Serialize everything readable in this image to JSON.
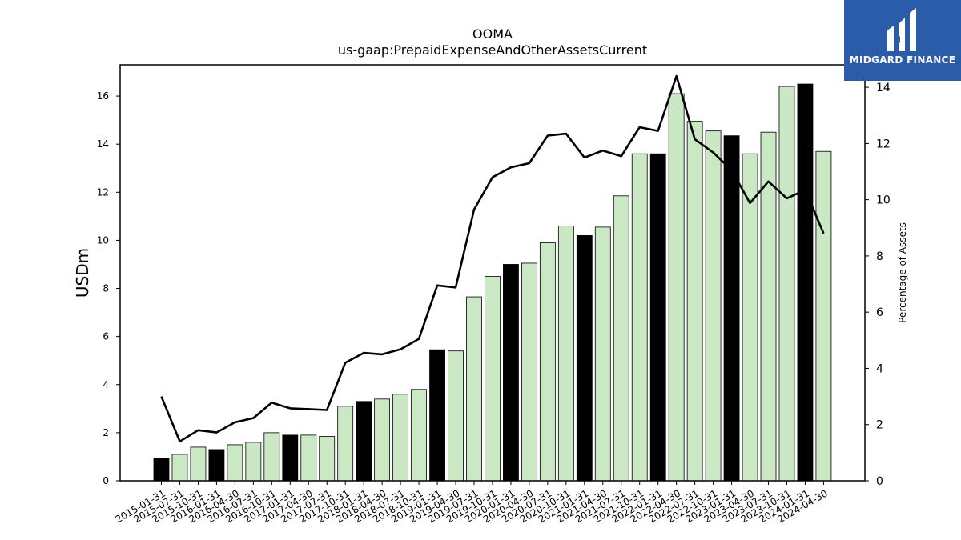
{
  "chart_data": {
    "type": "bar",
    "title": "OOMA",
    "subtitle": "us-gaap:PrepaidExpenseAndOtherAssetsCurrent",
    "ylabel": "USDm",
    "y2label": "Percentage of Assets",
    "ylim": [
      0,
      17.3
    ],
    "y2lim": [
      0,
      14.8
    ],
    "yticks": [
      0,
      2,
      4,
      6,
      8,
      10,
      12,
      14,
      16
    ],
    "y2ticks": [
      0,
      2,
      4,
      6,
      8,
      10,
      12,
      14
    ],
    "categories": [
      "2015-01-31",
      "2015-07-31",
      "2015-10-31",
      "2016-01-31",
      "2016-04-30",
      "2016-07-31",
      "2016-10-31",
      "2017-01-31",
      "2017-04-30",
      "2017-07-31",
      "2017-10-31",
      "2018-01-31",
      "2018-04-30",
      "2018-07-31",
      "2018-10-31",
      "2019-01-31",
      "2019-04-30",
      "2019-07-31",
      "2019-10-31",
      "2020-01-31",
      "2020-04-30",
      "2020-07-31",
      "2020-10-31",
      "2021-01-31",
      "2021-04-30",
      "2021-07-31",
      "2021-10-31",
      "2022-01-31",
      "2022-04-30",
      "2022-07-31",
      "2022-10-31",
      "2023-01-31",
      "2023-04-30",
      "2023-07-31",
      "2023-10-31",
      "2024-01-31",
      "2024-04-30"
    ],
    "series": [
      {
        "type": "bar",
        "values": [
          0.95,
          1.1,
          1.4,
          1.3,
          1.5,
          1.6,
          2.0,
          1.9,
          1.9,
          1.85,
          3.1,
          3.3,
          3.4,
          3.6,
          3.8,
          5.45,
          5.4,
          7.65,
          8.5,
          9.0,
          9.05,
          9.9,
          10.6,
          10.2,
          10.55,
          11.85,
          13.6,
          13.6,
          16.1,
          14.95,
          14.55,
          14.35,
          13.6,
          14.5,
          16.4,
          16.5,
          13.7
        ],
        "highlight": [
          true,
          false,
          false,
          true,
          false,
          false,
          false,
          true,
          false,
          false,
          false,
          true,
          false,
          false,
          false,
          true,
          false,
          false,
          false,
          true,
          false,
          false,
          false,
          true,
          false,
          false,
          false,
          true,
          false,
          false,
          false,
          true,
          false,
          false,
          false,
          true,
          false
        ]
      },
      {
        "type": "line",
        "axis": "right",
        "values": [
          3.0,
          1.4,
          1.8,
          1.72,
          2.08,
          2.23,
          2.78,
          2.58,
          2.55,
          2.52,
          4.2,
          4.55,
          4.5,
          4.68,
          5.05,
          6.95,
          6.88,
          9.65,
          10.8,
          11.15,
          11.3,
          12.28,
          12.35,
          11.5,
          11.75,
          11.55,
          12.58,
          12.45,
          14.4,
          12.15,
          11.68,
          11.05,
          9.88,
          10.65,
          10.05,
          10.35,
          8.8
        ]
      }
    ],
    "colors": {
      "bar_fill": "#cbe8c4",
      "bar_highlight": "#000000",
      "bar_edge": "#000000",
      "line": "#000000"
    }
  },
  "logo": {
    "text": "MIDGARD FINANCE",
    "background": "#2a5caa"
  }
}
